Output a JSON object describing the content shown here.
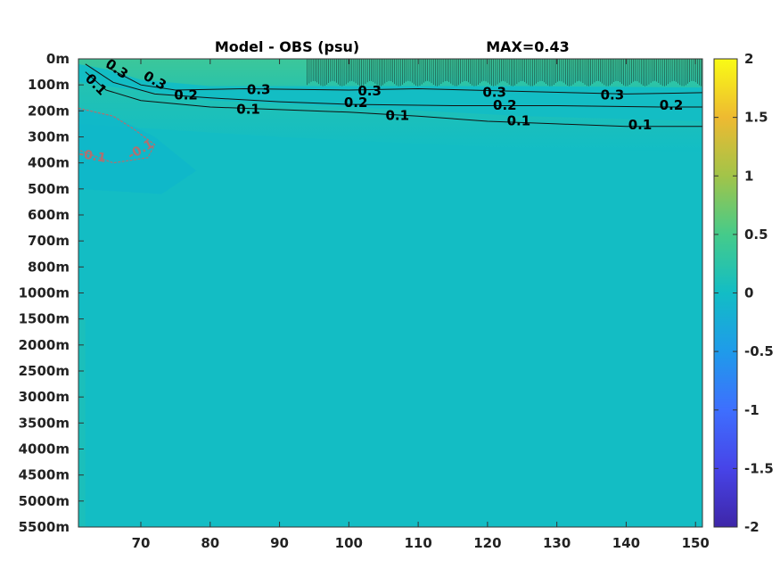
{
  "chart_data": {
    "type": "heatmap",
    "title": "Model - OBS (psu)",
    "max_annotation": "MAX=0.43",
    "xlabel": "",
    "ylabel": "",
    "x_range": [
      61,
      151
    ],
    "x_ticks": [
      70,
      80,
      90,
      100,
      110,
      120,
      130,
      140,
      150
    ],
    "x_tick_labels": [
      "70",
      "80",
      "90",
      "100",
      "110",
      "120",
      "130",
      "140",
      "150"
    ],
    "y_tick_labels": [
      "0m",
      "100m",
      "200m",
      "300m",
      "400m",
      "500m",
      "600m",
      "700m",
      "800m",
      "1000m",
      "1500m",
      "2000m",
      "2500m",
      "3000m",
      "3500m",
      "4000m",
      "4500m",
      "5000m",
      "5500m"
    ],
    "colorbar": {
      "range": [
        -2,
        2
      ],
      "tick_labels": [
        "2",
        "1.5",
        "1",
        "0.5",
        "0",
        "-0.5",
        "-1",
        "-1.5",
        "-2"
      ],
      "colormap": "parula",
      "colors": [
        "#3e26a8",
        "#4744e8",
        "#3e6ffe",
        "#1f9bea",
        "#12bdc5",
        "#45cb8a",
        "#a2c449",
        "#eeba31",
        "#f9fb15"
      ]
    },
    "field": {
      "background_value": 0.0,
      "surface_layer_value": 0.35,
      "subsurface_value": 0.15,
      "west_negative_value": -0.15
    },
    "contours": [
      {
        "level": 0.3,
        "label": "0.3",
        "points": [
          [
            65,
            0.3
          ],
          [
            70,
            1.0
          ],
          [
            75,
            1.2
          ],
          [
            85,
            1.15
          ],
          [
            100,
            1.2
          ],
          [
            110,
            1.15
          ],
          [
            125,
            1.25
          ],
          [
            140,
            1.35
          ],
          [
            151,
            1.3
          ]
        ]
      },
      {
        "level": 0.2,
        "label": "0.2",
        "points": [
          [
            62,
            0.2
          ],
          [
            66,
            0.9
          ],
          [
            72,
            1.35
          ],
          [
            80,
            1.5
          ],
          [
            90,
            1.65
          ],
          [
            100,
            1.75
          ],
          [
            115,
            1.8
          ],
          [
            130,
            1.8
          ],
          [
            145,
            1.85
          ],
          [
            151,
            1.85
          ]
        ]
      },
      {
        "level": 0.1,
        "label": "0.1",
        "points": [
          [
            62,
            0.5
          ],
          [
            65,
            1.2
          ],
          [
            70,
            1.6
          ],
          [
            80,
            1.85
          ],
          [
            90,
            1.95
          ],
          [
            100,
            2.05
          ],
          [
            110,
            2.2
          ],
          [
            120,
            2.4
          ],
          [
            130,
            2.5
          ],
          [
            140,
            2.6
          ],
          [
            151,
            2.6
          ]
        ]
      },
      {
        "level": -0.1,
        "label": "-0.1",
        "negative": true,
        "points": [
          [
            61,
            1.9
          ],
          [
            66,
            2.2
          ],
          [
            69,
            2.7
          ],
          [
            72,
            3.3
          ],
          [
            71,
            3.8
          ],
          [
            66,
            4.0
          ],
          [
            61,
            3.5
          ]
        ]
      }
    ],
    "contour_labels": [
      {
        "text": "0.1",
        "x": 63.5,
        "y": 1.0,
        "rotate": 45,
        "negative": false
      },
      {
        "text": "0.3",
        "x": 66.5,
        "y": 0.4,
        "rotate": 35,
        "negative": false
      },
      {
        "text": "0.3",
        "x": 72,
        "y": 0.85,
        "rotate": 30,
        "negative": false
      },
      {
        "text": "0.2",
        "x": 76.5,
        "y": 1.4,
        "rotate": 0,
        "negative": false
      },
      {
        "text": "0.3",
        "x": 87,
        "y": 1.2,
        "rotate": 0,
        "negative": false
      },
      {
        "text": "0.1",
        "x": 85.5,
        "y": 1.95,
        "rotate": 0,
        "negative": false
      },
      {
        "text": "0.2",
        "x": 101,
        "y": 1.7,
        "rotate": 0,
        "negative": false
      },
      {
        "text": "0.3",
        "x": 103,
        "y": 1.25,
        "rotate": 0,
        "negative": false
      },
      {
        "text": "0.1",
        "x": 107,
        "y": 2.2,
        "rotate": 0,
        "negative": false
      },
      {
        "text": "0.3",
        "x": 121,
        "y": 1.3,
        "rotate": 0,
        "negative": false
      },
      {
        "text": "0.2",
        "x": 122.5,
        "y": 1.8,
        "rotate": 0,
        "negative": false
      },
      {
        "text": "0.1",
        "x": 124.5,
        "y": 2.4,
        "rotate": 0,
        "negative": false
      },
      {
        "text": "0.3",
        "x": 138,
        "y": 1.4,
        "rotate": 0,
        "negative": false
      },
      {
        "text": "0.2",
        "x": 146.5,
        "y": 1.8,
        "rotate": 0,
        "negative": false
      },
      {
        "text": "0.1",
        "x": 142,
        "y": 2.55,
        "rotate": 0,
        "negative": false
      },
      {
        "text": "-0.1",
        "x": 63,
        "y": 3.75,
        "rotate": 10,
        "negative": true
      },
      {
        "text": "-0.1",
        "x": 70,
        "y": 3.5,
        "rotate": -30,
        "negative": true
      }
    ]
  }
}
